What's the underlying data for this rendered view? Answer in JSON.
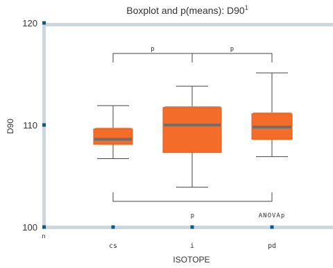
{
  "chart_data": {
    "type": "boxplot",
    "title": "Boxplot and p(means): D90",
    "title_superscript": "1",
    "xlabel": "ISOTOPE",
    "ylabel": "D90",
    "ylim": [
      100,
      122
    ],
    "yticks": [
      100,
      110,
      120
    ],
    "x_axis_corner_label": "n",
    "categories": [
      "CS",
      "I",
      "PD"
    ],
    "category_labels_shown": [
      "cs",
      "i",
      "pd"
    ],
    "boxes": [
      {
        "category": "CS",
        "whisker_low": 106.7,
        "q1": 108.1,
        "median": 108.6,
        "q3": 109.6,
        "whisker_high": 111.9
      },
      {
        "category": "I",
        "whisker_low": 103.9,
        "q1": 107.3,
        "median": 110.0,
        "q3": 111.7,
        "whisker_high": 113.8
      },
      {
        "category": "PD",
        "whisker_low": 106.9,
        "q1": 108.6,
        "median": 109.8,
        "q3": 111.1,
        "whisker_high": 115.1
      }
    ],
    "brackets": [
      {
        "from": "CS",
        "to": "I",
        "label": "p",
        "side": "top"
      },
      {
        "from": "I",
        "to": "PD",
        "label": "p",
        "side": "top"
      },
      {
        "from": "CS",
        "to": "PD",
        "label": "p",
        "side": "bottom"
      }
    ],
    "anova_label": "ANOVAp",
    "colors": {
      "box_fill": "#f36c2a",
      "box_edge": "#e05a18",
      "median": "#6e6e6e",
      "axis": "#cbd8e2",
      "marker": "#0b5a8c",
      "whisker": "#444444",
      "text": "#333333"
    }
  }
}
